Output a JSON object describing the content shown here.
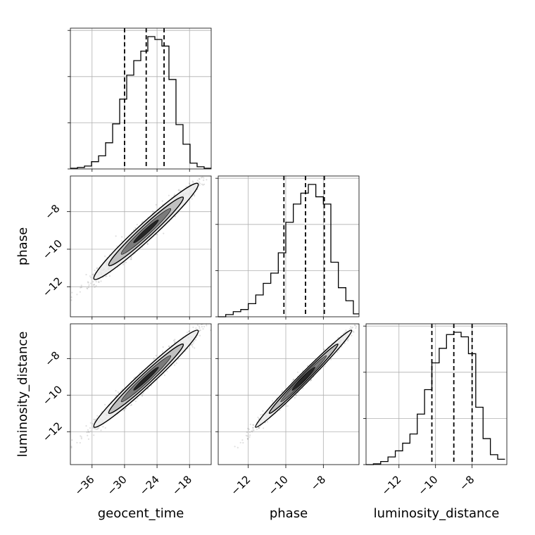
{
  "chart_data": {
    "type": "corner",
    "parameters": [
      "geocent_time",
      "phase",
      "luminosity_distance"
    ],
    "axis_labels": {
      "x": [
        "geocent_time",
        "phase",
        "luminosity_distance"
      ],
      "y": [
        "phase",
        "luminosity_distance"
      ]
    },
    "ranges": {
      "geocent_time": [
        -40,
        -14
      ],
      "phase": [
        -13.6,
        -6.1
      ],
      "luminosity_distance": [
        -13.8,
        -6.1
      ]
    },
    "ticks": {
      "geocent_time": [
        -36,
        -30,
        -24,
        -18
      ],
      "phase": [
        -12,
        -10,
        -8
      ],
      "luminosity_distance": [
        -12,
        -10,
        -8
      ]
    },
    "tick_labels": {
      "geocent_time": [
        "−36",
        "−30",
        "−24",
        "−18"
      ],
      "phase": [
        "−12",
        "−10",
        "−8"
      ],
      "luminosity_distance": [
        "−12",
        "−10",
        "−8"
      ]
    },
    "histograms": {
      "geocent_time": {
        "edges": [
          -40,
          -38.7,
          -37.4,
          -36.1,
          -34.8,
          -33.5,
          -32.2,
          -30.9,
          -29.6,
          -28.3,
          -27.0,
          -25.7,
          -24.4,
          -23.1,
          -21.8,
          -20.5,
          -19.2,
          -17.9,
          -16.6,
          -15.3,
          -14.0
        ],
        "counts": [
          1,
          2,
          4,
          10,
          18,
          36,
          62,
          96,
          129,
          149,
          162,
          182,
          178,
          169,
          123,
          61,
          34,
          8,
          3,
          1
        ],
        "quantiles": [
          -30.0,
          -26.0,
          -22.7
        ]
      },
      "phase": {
        "edges": [
          -13.6,
          -13.2,
          -12.8,
          -12.4,
          -12.0,
          -11.6,
          -11.2,
          -10.8,
          -10.4,
          -10.0,
          -9.6,
          -9.2,
          -8.8,
          -8.4,
          -8.0,
          -7.6,
          -7.2,
          -6.8,
          -6.4,
          -6.1
        ],
        "counts": [
          0,
          3,
          7,
          10,
          18,
          30,
          46,
          60,
          88,
          130,
          155,
          170,
          182,
          165,
          155,
          75,
          40,
          22,
          4
        ],
        "quantiles": [
          -10.1,
          -8.95,
          -7.95
        ]
      },
      "luminosity_distance": {
        "edges": [
          -13.8,
          -13.4,
          -13.0,
          -12.6,
          -12.2,
          -11.8,
          -11.4,
          -11.0,
          -10.6,
          -10.2,
          -9.8,
          -9.4,
          -9.0,
          -8.6,
          -8.2,
          -7.8,
          -7.4,
          -7.0,
          -6.6,
          -6.2
        ],
        "counts": [
          0,
          1,
          4,
          10,
          18,
          28,
          40,
          66,
          98,
          133,
          152,
          170,
          173,
          167,
          145,
          75,
          34,
          13,
          7
        ],
        "quantiles": [
          -10.2,
          -9.0,
          -8.0
        ]
      }
    },
    "scatter": {
      "n_points": 1400,
      "correlation": "strong positive",
      "slope_phase_per_time": 0.27
    },
    "grid": true
  }
}
